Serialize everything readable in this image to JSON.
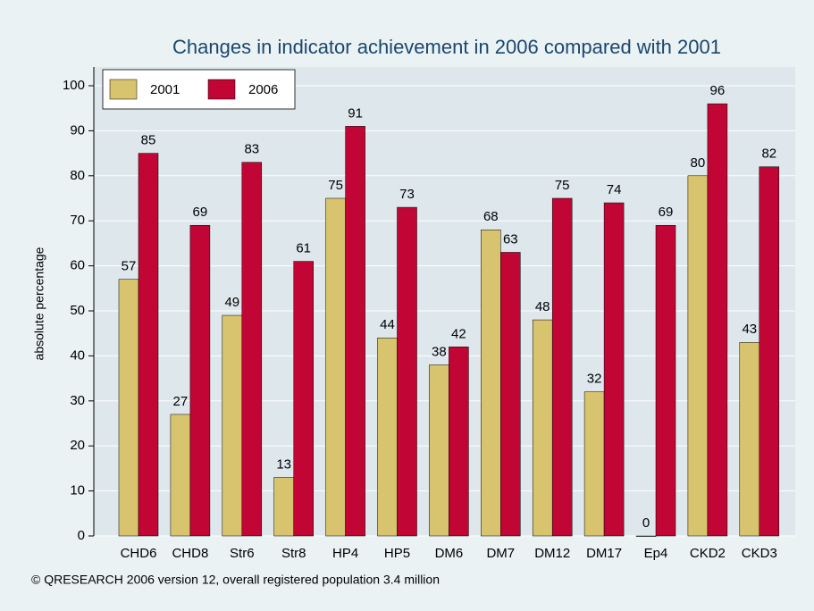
{
  "chart_data": {
    "type": "bar",
    "title": "Changes in indicator achievement in 2006 compared with 2001",
    "y_label": "absolute percentage",
    "footer": "© QRESEARCH 2006 version 12, overall registered population 3.4 million",
    "categories": [
      "CHD6",
      "CHD8",
      "Str6",
      "Str8",
      "HP4",
      "HP5",
      "DM6",
      "DM7",
      "DM12",
      "DM17",
      "Ep4",
      "CKD2",
      "CKD3"
    ],
    "series": [
      {
        "name": "2001",
        "color": "#d8c46e",
        "values": [
          57,
          27,
          49,
          13,
          75,
          44,
          38,
          68,
          48,
          32,
          0,
          80,
          43
        ]
      },
      {
        "name": "2006",
        "color": "#c10534",
        "values": [
          85,
          69,
          83,
          61,
          91,
          73,
          42,
          63,
          75,
          74,
          69,
          96,
          82
        ]
      }
    ],
    "ylim": [
      0,
      100
    ],
    "yticks": [
      0,
      10,
      20,
      30,
      40,
      50,
      60,
      70,
      80,
      90,
      100
    ],
    "grid": true,
    "legend": "top-left"
  }
}
